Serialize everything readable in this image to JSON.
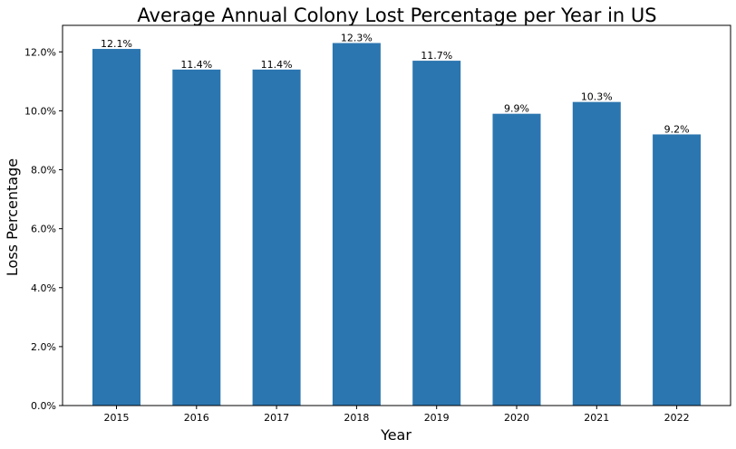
{
  "chart_data": {
    "type": "bar",
    "title": "Average Annual Colony Lost Percentage per Year in US",
    "xlabel": "Year",
    "ylabel": "Loss Percentage",
    "categories": [
      "2015",
      "2016",
      "2017",
      "2018",
      "2019",
      "2020",
      "2021",
      "2022"
    ],
    "values": [
      12.1,
      11.4,
      11.4,
      12.3,
      11.7,
      9.9,
      10.3,
      9.2
    ],
    "data_labels": [
      "12.1%",
      "11.4%",
      "11.4%",
      "12.3%",
      "11.7%",
      "9.9%",
      "10.3%",
      "9.2%"
    ],
    "ylim": [
      0,
      12.9
    ],
    "yticks": [
      0,
      2,
      4,
      6,
      8,
      10,
      12
    ],
    "ytick_labels": [
      "0.0%",
      "2.0%",
      "4.0%",
      "6.0%",
      "8.0%",
      "10.0%",
      "12.0%"
    ],
    "grid": false,
    "legend": "none",
    "bar_color": "#2b76b0"
  }
}
